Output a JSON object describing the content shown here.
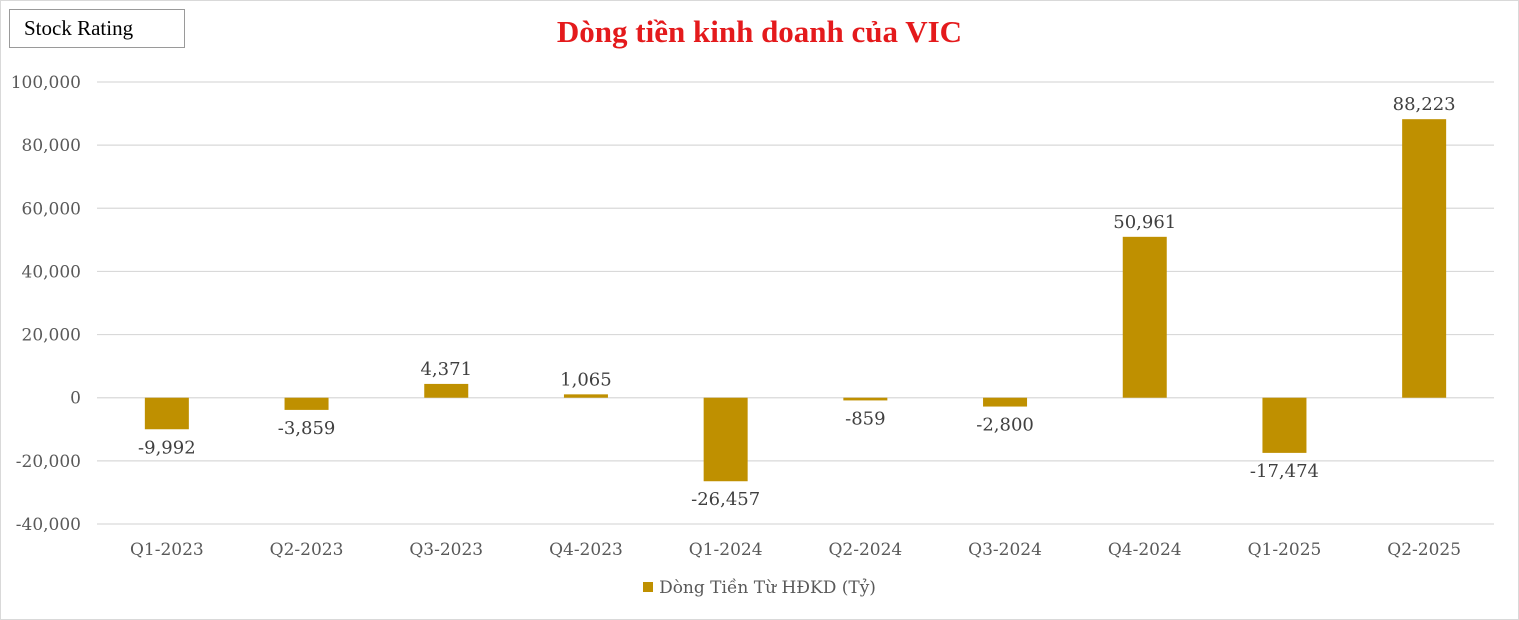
{
  "badge": {
    "text": "Stock Rating"
  },
  "chart_data": {
    "type": "bar",
    "title": "Dòng tiền kinh doanh của VIC",
    "categories": [
      "Q1-2023",
      "Q2-2023",
      "Q3-2023",
      "Q4-2023",
      "Q1-2024",
      "Q2-2024",
      "Q3-2024",
      "Q4-2024",
      "Q1-2025",
      "Q2-2025"
    ],
    "series": [
      {
        "name": "Dòng Tiền Từ HĐKD (Tỷ)",
        "values": [
          -9992,
          -3859,
          4371,
          1065,
          -26457,
          -859,
          -2800,
          50961,
          -17474,
          88223
        ],
        "labels": [
          "-9,992",
          "-3,859",
          "4,371",
          "1,065",
          "-26,457",
          "-859",
          "-2,800",
          "50,961",
          "-17,474",
          "88,223"
        ]
      }
    ],
    "ylim": [
      -40000,
      100000
    ],
    "yticks": [
      100000,
      80000,
      60000,
      40000,
      20000,
      0,
      -20000,
      -40000
    ],
    "ytick_labels": [
      "100,000",
      "80,000",
      "60,000",
      "40,000",
      "20,000",
      "0",
      "-20,000",
      "-40,000"
    ],
    "xlabel": "",
    "ylabel": "",
    "grid": true,
    "legend_position": "bottom",
    "bar_color": "#bf9000"
  }
}
